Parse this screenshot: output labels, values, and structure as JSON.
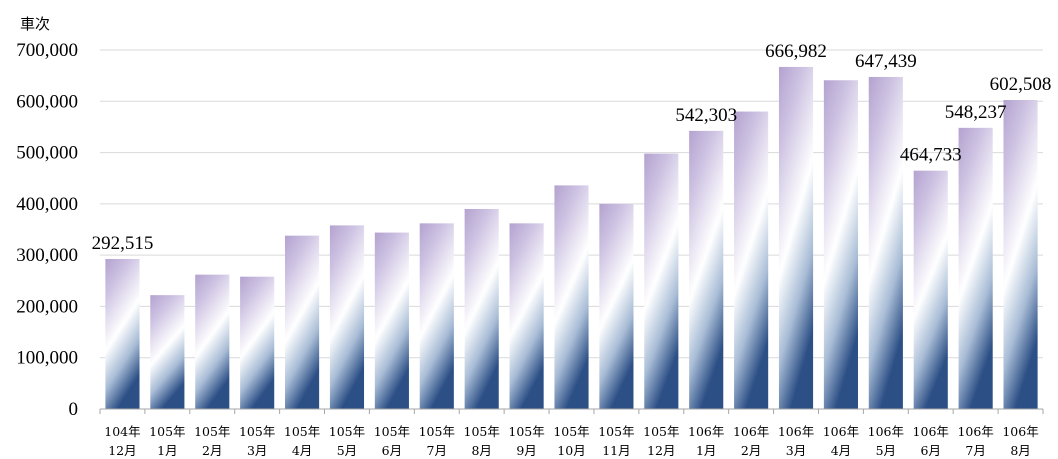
{
  "chart_data": {
    "type": "bar",
    "ylabel": "車次",
    "ylim": [
      0,
      700000
    ],
    "yticks": [
      "0",
      "100,000",
      "200,000",
      "300,000",
      "400,000",
      "500,000",
      "600,000",
      "700,000"
    ],
    "grid": true,
    "categories": [
      [
        "104年",
        "12月"
      ],
      [
        "105年",
        "1月"
      ],
      [
        "105年",
        "2月"
      ],
      [
        "105年",
        "3月"
      ],
      [
        "105年",
        "4月"
      ],
      [
        "105年",
        "5月"
      ],
      [
        "105年",
        "6月"
      ],
      [
        "105年",
        "7月"
      ],
      [
        "105年",
        "8月"
      ],
      [
        "105年",
        "9月"
      ],
      [
        "105年",
        "10月"
      ],
      [
        "105年",
        "11月"
      ],
      [
        "105年",
        "12月"
      ],
      [
        "106年",
        "1月"
      ],
      [
        "106年",
        "2月"
      ],
      [
        "106年",
        "3月"
      ],
      [
        "106年",
        "4月"
      ],
      [
        "106年",
        "5月"
      ],
      [
        "106年",
        "6月"
      ],
      [
        "106年",
        "7月"
      ],
      [
        "106年",
        "8月"
      ]
    ],
    "values": [
      292515,
      222000,
      262000,
      258000,
      338000,
      358000,
      344000,
      362000,
      390000,
      362000,
      436000,
      400000,
      498000,
      542303,
      580000,
      666982,
      641000,
      647439,
      464733,
      548237,
      602508
    ],
    "data_labels": [
      {
        "index": 0,
        "text": "292,515"
      },
      {
        "index": 13,
        "text": "542,303"
      },
      {
        "index": 15,
        "text": "666,982"
      },
      {
        "index": 17,
        "text": "647,439"
      },
      {
        "index": 18,
        "text": "464,733"
      },
      {
        "index": 19,
        "text": "548,237"
      },
      {
        "index": 20,
        "text": "602,508"
      }
    ],
    "colors": {
      "bar_top": "#b3a2cf",
      "bar_mid": "#ffffff",
      "bar_bottom": "#2c4f86",
      "grid": "#d9d9d9",
      "axis": "#a6a6a6"
    }
  }
}
